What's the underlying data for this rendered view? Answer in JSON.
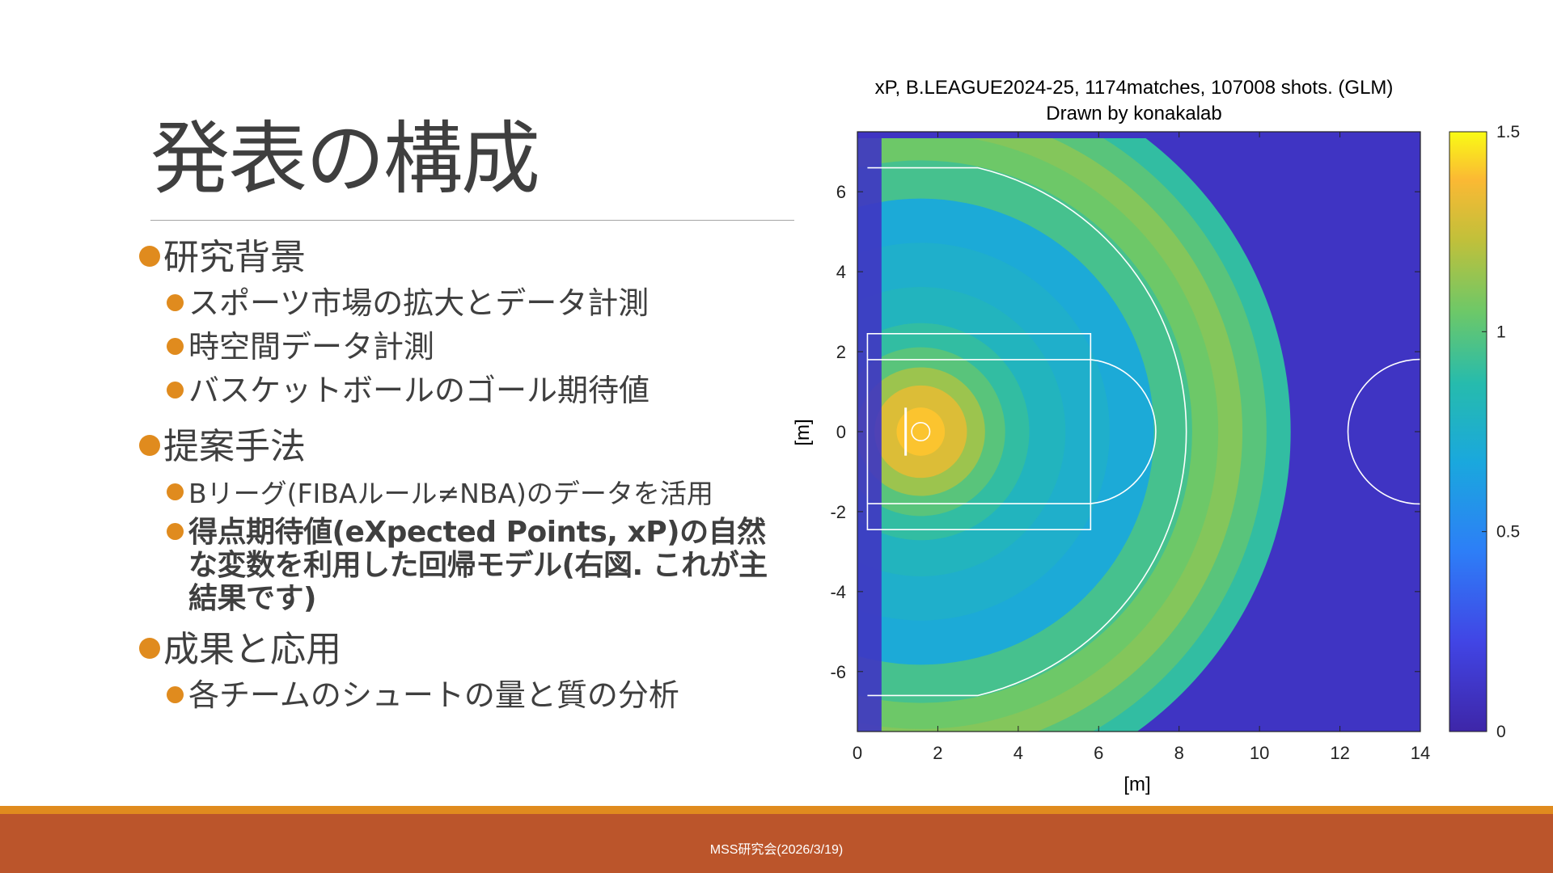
{
  "slide": {
    "title": "発表の構成",
    "sections": [
      {
        "heading": "研究背景",
        "items": [
          "スポーツ市場の拡大とデータ計測",
          "時空間データ計測",
          "バスケットボールのゴール期待値"
        ]
      },
      {
        "heading": "提案手法",
        "items": [
          "Bリーグ(FIBAルール≠NBA)のデータを活用",
          "得点期待値(eXpected Points, xP)の自然な変数を利用した回帰モデル(右図. これが主結果です)"
        ]
      },
      {
        "heading": "成果と応用",
        "items": [
          "各チームのシュートの量と質の分析"
        ]
      }
    ],
    "footer": "MSS研究会(2026/3/19)"
  },
  "colors": {
    "accent": "#e08b1e",
    "footer_band": "#bb552b",
    "text": "#404040"
  },
  "chart_data": {
    "type": "heatmap",
    "title": "xP, B.LEAGUE2024-25, 1174matches, 107008 shots. (GLM)",
    "subtitle": "Drawn by konakalab",
    "xlabel": "[m]",
    "ylabel": "[m]",
    "xlim": [
      0,
      14
    ],
    "ylim": [
      -7.5,
      7.5
    ],
    "xticks": [
      "0",
      "2",
      "4",
      "6",
      "8",
      "10",
      "12",
      "14"
    ],
    "yticks": [
      "6",
      "4",
      "2",
      "0",
      "-2",
      "-4",
      "-6"
    ],
    "colorbar": {
      "min": 0,
      "max": 1.5,
      "ticks": [
        "1.5",
        "1",
        "0.5",
        "0"
      ]
    },
    "basket": {
      "x": 1.575,
      "y": 0
    },
    "three_point_radius": 6.75,
    "contour_levels": [
      {
        "r": 9.2,
        "value": 0.9
      },
      {
        "r": 8.6,
        "value": 1.0
      },
      {
        "r": 8.0,
        "value": 1.1
      },
      {
        "r": 7.4,
        "value": 1.05
      },
      {
        "r": 6.75,
        "value": 0.95
      },
      {
        "r": 5.8,
        "value": 0.7
      },
      {
        "r": 4.7,
        "value": 0.75
      },
      {
        "r": 3.6,
        "value": 0.8
      },
      {
        "r": 2.7,
        "value": 0.9
      },
      {
        "r": 2.1,
        "value": 1.0
      },
      {
        "r": 1.6,
        "value": 1.15
      },
      {
        "r": 1.15,
        "value": 1.3
      },
      {
        "r": 0.6,
        "value": 1.4
      }
    ]
  }
}
